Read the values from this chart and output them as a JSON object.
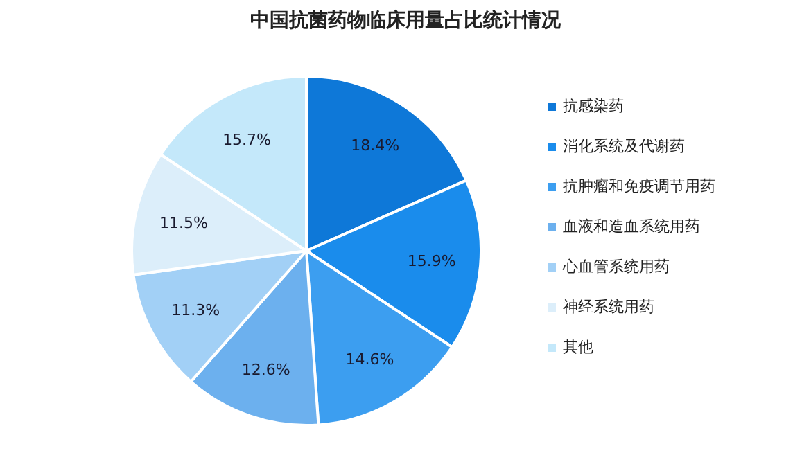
{
  "chart_data": {
    "type": "pie",
    "title": "中国抗菌药物临床用量占比统计情况",
    "categories": [
      "抗感染药",
      "消化系统及代谢药",
      "抗肿瘤和免疫调节用药",
      "血液和造血系统用药",
      "心血管系统用药",
      "神经系统用药",
      "其他"
    ],
    "values": [
      18.4,
      15.9,
      14.6,
      12.6,
      11.3,
      11.5,
      15.7
    ],
    "value_labels": [
      "18.4%",
      "15.9%",
      "14.6%",
      "12.6%",
      "11.3%",
      "11.5%",
      "15.7%"
    ],
    "colors": [
      "#0e78d8",
      "#1a8cec",
      "#3c9ef0",
      "#6cb0ee",
      "#a2d0f6",
      "#dceefa",
      "#c4e8fa"
    ],
    "legend": "right"
  }
}
